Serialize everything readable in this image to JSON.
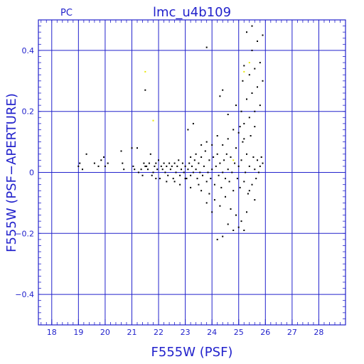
{
  "chart_data": {
    "type": "scatter",
    "title": "lmc_u4b109",
    "corner_label": "PC",
    "xlabel": "F555W (PSF)",
    "ylabel": "F555W (PSF−APERTURE)",
    "xlim": [
      17.5,
      29.0
    ],
    "ylim": [
      -0.5,
      0.5
    ],
    "x_ticks": [
      18,
      19,
      20,
      21,
      22,
      23,
      24,
      25,
      26,
      27,
      28
    ],
    "y_ticks": [
      -0.4,
      -0.2,
      0,
      0.2,
      0.4
    ],
    "y_tick_labels": [
      "−0.4",
      "−0.2",
      "0",
      "0.2",
      "0.4"
    ],
    "grid": true,
    "colors": {
      "axis": "#2222cc",
      "points": "#000000",
      "highlight": "#e8e800"
    },
    "series": [
      {
        "color": "#000000",
        "points": [
          [
            19.0,
            0.02
          ],
          [
            19.05,
            0.03
          ],
          [
            19.15,
            0.01
          ],
          [
            19.3,
            0.06
          ],
          [
            19.6,
            0.03
          ],
          [
            19.75,
            0.02
          ],
          [
            19.85,
            0.04
          ],
          [
            19.95,
            0.05
          ],
          [
            20.0,
            0.02
          ],
          [
            20.1,
            0.03
          ],
          [
            20.6,
            0.07
          ],
          [
            20.65,
            0.03
          ],
          [
            20.7,
            0.01
          ],
          [
            21.0,
            0.08
          ],
          [
            21.05,
            0.02
          ],
          [
            21.1,
            0.01
          ],
          [
            21.2,
            0.08
          ],
          [
            21.25,
            0.0
          ],
          [
            21.35,
            0.01
          ],
          [
            21.4,
            -0.01
          ],
          [
            21.45,
            0.03
          ],
          [
            21.5,
            0.02
          ],
          [
            21.55,
            0.02
          ],
          [
            21.6,
            0.01
          ],
          [
            21.65,
            0.03
          ],
          [
            21.7,
            0.06
          ],
          [
            21.75,
            -0.01
          ],
          [
            21.8,
            0.0
          ],
          [
            21.85,
            0.02
          ],
          [
            21.9,
            0.03
          ],
          [
            21.95,
            0.01
          ],
          [
            22.0,
            0.04
          ],
          [
            22.05,
            -0.02
          ],
          [
            22.1,
            0.02
          ],
          [
            22.15,
            0.01
          ],
          [
            22.2,
            0.03
          ],
          [
            22.25,
            0.0
          ],
          [
            22.3,
            0.02
          ],
          [
            22.35,
            -0.01
          ],
          [
            22.4,
            0.03
          ],
          [
            22.45,
            0.01
          ],
          [
            22.5,
            0.02
          ],
          [
            22.55,
            -0.02
          ],
          [
            22.6,
            0.03
          ],
          [
            22.65,
            0.0
          ],
          [
            22.7,
            0.02
          ],
          [
            22.75,
            0.04
          ],
          [
            22.8,
            -0.01
          ],
          [
            22.85,
            0.01
          ],
          [
            22.9,
            0.03
          ],
          [
            22.95,
            0.0
          ],
          [
            23.0,
            0.02
          ],
          [
            23.05,
            -0.02
          ],
          [
            23.1,
            0.01
          ],
          [
            23.15,
            0.03
          ],
          [
            23.2,
            -0.01
          ],
          [
            23.25,
            0.02
          ],
          [
            23.3,
            0.0
          ],
          [
            23.35,
            0.04
          ],
          [
            23.4,
            0.01
          ],
          [
            23.45,
            -0.02
          ],
          [
            23.5,
            0.03
          ],
          [
            23.55,
            0.0
          ],
          [
            23.6,
            0.05
          ],
          [
            23.65,
            -0.01
          ],
          [
            23.7,
            0.02
          ],
          [
            23.75,
            0.07
          ],
          [
            23.8,
            -0.03
          ],
          [
            23.85,
            0.0
          ],
          [
            23.9,
            0.04
          ],
          [
            23.95,
            -0.02
          ],
          [
            24.0,
            0.01
          ],
          [
            24.05,
            0.05
          ],
          [
            24.1,
            -0.04
          ],
          [
            24.15,
            0.02
          ],
          [
            24.2,
            0.06
          ],
          [
            24.25,
            -0.01
          ],
          [
            24.3,
            0.03
          ],
          [
            24.35,
            -0.05
          ],
          [
            24.4,
            0.0
          ],
          [
            24.45,
            0.04
          ],
          [
            24.5,
            -0.02
          ],
          [
            24.55,
            0.06
          ],
          [
            24.6,
            0.01
          ],
          [
            24.65,
            -0.03
          ],
          [
            24.7,
            0.05
          ],
          [
            24.75,
            0.0
          ],
          [
            24.8,
            -0.06
          ],
          [
            24.85,
            0.03
          ],
          [
            24.9,
            0.08
          ],
          [
            24.95,
            -0.02
          ],
          [
            25.0,
            0.02
          ],
          [
            25.05,
            -0.05
          ],
          [
            25.1,
            0.04
          ],
          [
            25.15,
            0.1
          ],
          [
            25.2,
            -0.03
          ],
          [
            25.25,
            0.0
          ],
          [
            25.3,
            0.06
          ],
          [
            25.35,
            -0.07
          ],
          [
            25.4,
            0.02
          ],
          [
            25.45,
            0.12
          ],
          [
            25.5,
            -0.04
          ],
          [
            25.55,
            0.05
          ],
          [
            25.6,
            0.01
          ],
          [
            25.65,
            -0.02
          ],
          [
            25.7,
            0.04
          ],
          [
            25.75,
            0.0
          ],
          [
            25.8,
            0.02
          ],
          [
            25.85,
            0.05
          ],
          [
            25.9,
            0.03
          ],
          [
            23.2,
            0.05
          ],
          [
            23.4,
            0.06
          ],
          [
            23.6,
            0.09
          ],
          [
            23.8,
            0.1
          ],
          [
            24.0,
            0.09
          ],
          [
            24.2,
            0.12
          ],
          [
            24.4,
            0.09
          ],
          [
            24.6,
            0.11
          ],
          [
            24.8,
            0.14
          ],
          [
            25.0,
            0.13
          ],
          [
            25.2,
            0.16
          ],
          [
            25.4,
            0.18
          ],
          [
            25.6,
            0.2
          ],
          [
            25.8,
            0.22
          ],
          [
            25.3,
            0.24
          ],
          [
            25.5,
            0.26
          ],
          [
            25.7,
            0.28
          ],
          [
            25.9,
            0.3
          ],
          [
            25.4,
            0.32
          ],
          [
            25.6,
            0.34
          ],
          [
            25.8,
            0.36
          ],
          [
            25.5,
            0.4
          ],
          [
            25.7,
            0.43
          ],
          [
            25.3,
            0.46
          ],
          [
            25.5,
            0.48
          ],
          [
            25.9,
            0.45
          ],
          [
            25.2,
            0.35
          ],
          [
            25.15,
            0.3
          ],
          [
            25.1,
            0.2
          ],
          [
            25.05,
            0.15
          ],
          [
            24.3,
            0.25
          ],
          [
            24.4,
            0.27
          ],
          [
            24.6,
            0.19
          ],
          [
            23.8,
            0.41
          ],
          [
            21.5,
            0.27
          ],
          [
            23.1,
            0.14
          ],
          [
            23.3,
            0.16
          ],
          [
            24.9,
            0.22
          ],
          [
            25.2,
            0.11
          ],
          [
            25.6,
            0.15
          ],
          [
            22.3,
            -0.03
          ],
          [
            22.8,
            -0.04
          ],
          [
            23.2,
            -0.05
          ],
          [
            23.6,
            -0.06
          ],
          [
            23.9,
            -0.07
          ],
          [
            24.1,
            -0.09
          ],
          [
            24.3,
            -0.11
          ],
          [
            24.5,
            -0.08
          ],
          [
            24.7,
            -0.12
          ],
          [
            24.9,
            -0.14
          ],
          [
            25.1,
            -0.16
          ],
          [
            25.3,
            -0.13
          ],
          [
            25.0,
            -0.18
          ],
          [
            24.8,
            -0.19
          ],
          [
            24.6,
            -0.17
          ],
          [
            24.4,
            -0.21
          ],
          [
            24.2,
            -0.22
          ],
          [
            25.2,
            -0.19
          ],
          [
            23.8,
            -0.1
          ],
          [
            23.5,
            -0.04
          ],
          [
            21.9,
            -0.02
          ],
          [
            22.6,
            -0.03
          ],
          [
            23.0,
            -0.02
          ],
          [
            24.0,
            -0.13
          ],
          [
            25.4,
            -0.06
          ],
          [
            25.6,
            -0.09
          ]
        ]
      },
      {
        "color": "#e8e800",
        "points": [
          [
            21.5,
            0.33
          ],
          [
            21.8,
            0.17
          ],
          [
            25.2,
            0.33
          ],
          [
            25.4,
            0.36
          ],
          [
            24.8,
            0.04
          ]
        ]
      }
    ]
  }
}
